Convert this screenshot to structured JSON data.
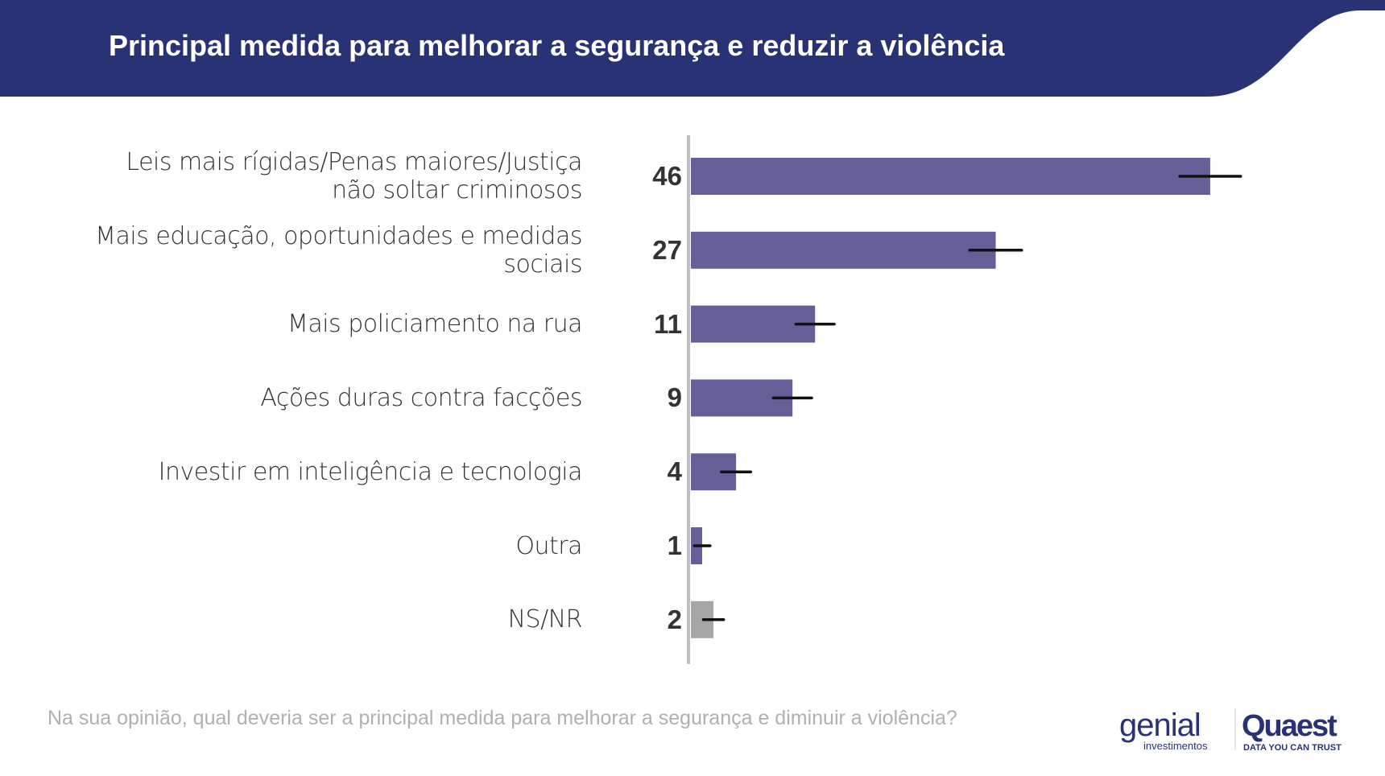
{
  "header": {
    "title": "Principal medida para melhorar a segurança e reduzir a violência"
  },
  "colors": {
    "header": "#283274",
    "bar": "#645f97",
    "bar_nsnr": "#a6a6a6",
    "axis": "#bfbfbf",
    "error": "#111111"
  },
  "chart_data": {
    "type": "bar",
    "orientation": "horizontal",
    "categories": [
      "Leis mais rígidas/Penas maiores/Justiça não soltar criminosos",
      "Mais educação, oportunidades e medidas sociais",
      "Mais policiamento na rua",
      "Ações duras contra facções",
      "Investir em inteligência e tecnologia",
      "Outra",
      "NS/NR"
    ],
    "category_lines": [
      [
        "Leis mais rígidas/Penas maiores/Justiça",
        "não soltar criminosos"
      ],
      [
        "Mais educação, oportunidades e medidas",
        "sociais"
      ],
      [
        "Mais policiamento na rua"
      ],
      [
        "Ações duras contra facções"
      ],
      [
        "Investir em inteligência e tecnologia"
      ],
      [
        "Outra"
      ],
      [
        "NS/NR"
      ]
    ],
    "values": [
      46,
      27,
      11,
      9,
      4,
      1,
      2
    ],
    "labels": [
      "46",
      "27",
      "11",
      "9",
      "4",
      "1",
      "2"
    ],
    "error_margin": [
      2.7,
      2.3,
      1.7,
      1.7,
      1.3,
      0.7,
      0.9
    ],
    "xlim": [
      0,
      50
    ],
    "grid": false
  },
  "footer": {
    "question": "Na sua opinião, qual deveria ser a principal medida para melhorar a segurança e diminuir a violência?"
  },
  "logos": {
    "genial": "genial",
    "genial_sub": "investimentos",
    "quaest": "Quaest",
    "quaest_sub": "DATA YOU CAN TRUST"
  }
}
